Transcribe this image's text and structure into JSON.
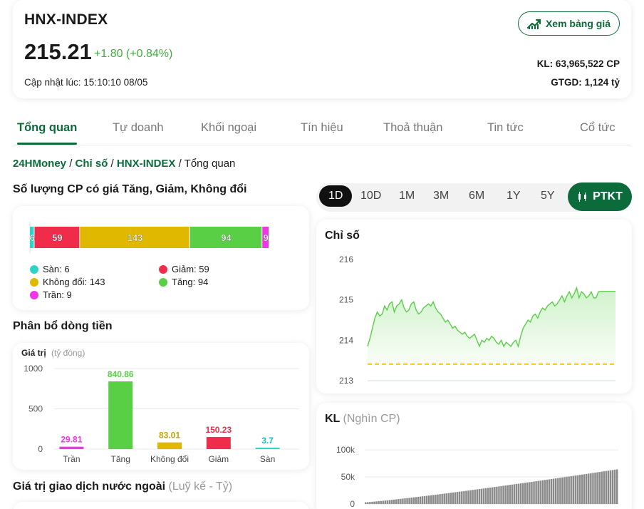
{
  "header": {
    "index_name": "HNX-INDEX",
    "value": "215.21",
    "change": "+1.80 (+0.84%)",
    "updated": "Cập nhật lúc: 15:10:10 08/05",
    "price_button": "Xem bảng giá",
    "volume": "KL: 63,965,522 CP",
    "turnover": "GTGD: 1,124 tỷ"
  },
  "tabs": [
    "Tổng quan",
    "Tự doanh",
    "Khối ngoại",
    "Tín hiệu",
    "Thoả thuận",
    "Tin tức",
    "Cổ tức"
  ],
  "active_tab": "Tổng quan",
  "breadcrumb": {
    "home": "24HMoney",
    "sep1": " / ",
    "section": "Chỉ số",
    "sep2": " / ",
    "index": "HNX-INDEX",
    "sep3": " / ",
    "current": "Tổng quan"
  },
  "breadth": {
    "title": "Số lượng CP có giá Tăng, Giảm, Không đổi",
    "segments": [
      {
        "key": "san",
        "label": "Sàn",
        "value": 6,
        "color": "#2fd3c8"
      },
      {
        "key": "giam",
        "label": "Giảm",
        "value": 59,
        "color": "#ef2d4b"
      },
      {
        "key": "khongdoi",
        "label": "Không đổi",
        "value": 143,
        "color": "#e0b800"
      },
      {
        "key": "tang",
        "label": "Tăng",
        "value": 94,
        "color": "#58cf45"
      },
      {
        "key": "tran",
        "label": "Trần",
        "value": 9,
        "color": "#ee36e6"
      }
    ],
    "legend": {
      "san": "Sàn: 6",
      "giam": "Giảm: 59",
      "khongdoi": "Không đổi: 143",
      "tang": "Tăng: 94",
      "tran": "Trần: 9"
    }
  },
  "cash_flow": {
    "title": "Phân bổ dòng tiền",
    "axis_label": "Giá trị",
    "axis_unit": "(tỷ đồng)",
    "chart_data": {
      "type": "bar",
      "categories": [
        "Trần",
        "Tăng",
        "Không đổi",
        "Giảm",
        "Sàn"
      ],
      "values": [
        29.81,
        840.86,
        83.01,
        150.23,
        3.7
      ],
      "labels": [
        "29.81",
        "840.86",
        "83.01",
        "150.23",
        "3.7"
      ],
      "colors": [
        "#ee36e6",
        "#58cf45",
        "#e0b800",
        "#ef2d4b",
        "#2fd3c8"
      ],
      "yticks": [
        "1000",
        "500",
        "0"
      ],
      "ylim": [
        0,
        1000
      ]
    }
  },
  "foreign": {
    "title": "Giá trị giao dịch nước ngoài",
    "unit": "(Luỹ kế - Tỷ)"
  },
  "periods": [
    "1D",
    "10D",
    "1M",
    "3M",
    "6M",
    "1Y",
    "5Y"
  ],
  "active_period": "1D",
  "ptkt_label": "PTKT",
  "index_chart": {
    "title": "Chỉ số",
    "chart_data": {
      "type": "area",
      "yticks": [
        "216",
        "215",
        "214",
        "213"
      ],
      "ylim": [
        213,
        216
      ],
      "reference": 213.41,
      "values": [
        213.85,
        214.05,
        214.3,
        214.55,
        214.7,
        214.6,
        214.65,
        214.85,
        214.75,
        214.9,
        214.95,
        214.7,
        214.85,
        214.9,
        215.0,
        214.8,
        214.7,
        214.75,
        214.9,
        214.95,
        214.75,
        214.65,
        214.7,
        214.8,
        214.85,
        214.9,
        214.85,
        214.95,
        214.8,
        214.7,
        214.65,
        214.55,
        214.45,
        214.5,
        214.4,
        214.3,
        214.35,
        214.25,
        214.2,
        214.15,
        214.2,
        214.1,
        214.05,
        214.1,
        214.15,
        214.0,
        213.85,
        214.0,
        213.95,
        214.05,
        214.0,
        214.1,
        214.05,
        213.95,
        213.9,
        214.0,
        213.85,
        213.95,
        213.9,
        213.85,
        213.95,
        214.0,
        213.85,
        214.1,
        214.3,
        214.4,
        214.5,
        214.45,
        214.6,
        214.65,
        214.55,
        214.7,
        214.8,
        214.75,
        214.85,
        214.9,
        214.95,
        214.85,
        214.9,
        215.0,
        215.1,
        214.95,
        215.1,
        215.2,
        215.05,
        215.15,
        215.3,
        215.05,
        215.2,
        215.15,
        215.05,
        215.1,
        215.2,
        215.05,
        215.05,
        215.2,
        215.21,
        215.21,
        215.21,
        215.21,
        215.21,
        215.21,
        215.21
      ]
    }
  },
  "volume_chart": {
    "title": "KL",
    "unit": "(Nghìn CP)",
    "chart_data": {
      "type": "bar",
      "yticks": [
        "100k",
        "50k",
        "0"
      ],
      "ylim": [
        0,
        100000
      ],
      "final_value": 63965
    }
  }
}
